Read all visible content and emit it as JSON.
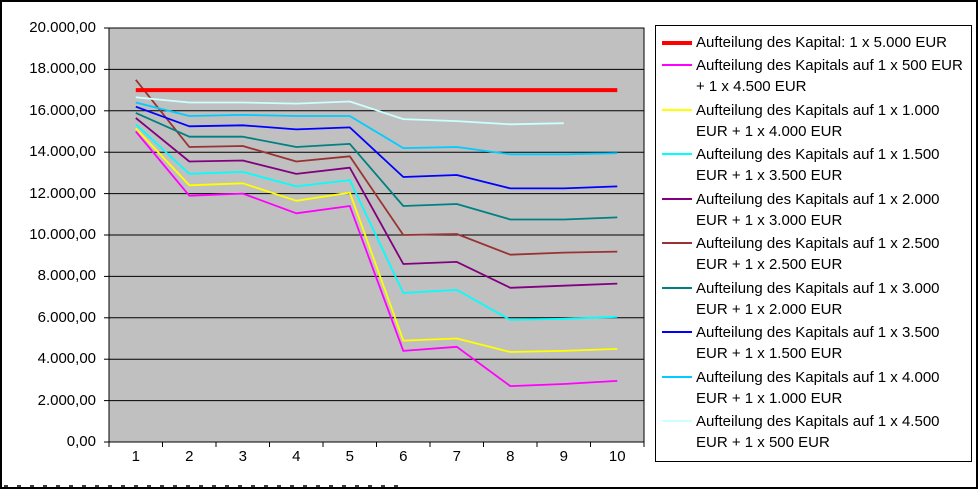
{
  "chart_data": {
    "type": "line",
    "title": "",
    "xlabel": "",
    "ylabel": "",
    "grid": true,
    "plot_bg_color": "#C0C0C0",
    "gridline_color": "#000000",
    "legend_position": "right",
    "x": [
      1,
      2,
      3,
      4,
      5,
      6,
      7,
      8,
      9,
      10
    ],
    "x_tick_labels": [
      "1",
      "2",
      "3",
      "4",
      "5",
      "6",
      "7",
      "8",
      "9",
      "10"
    ],
    "y_axis": {
      "min": 0,
      "max": 20000,
      "step": 2000,
      "tick_labels": [
        "20.000,00",
        "18.000,00",
        "16.000,00",
        "14.000,00",
        "12.000,00",
        "10.000,00",
        "8.000,00",
        "6.000,00",
        "4.000,00",
        "2.000,00",
        "0,00"
      ]
    },
    "series": [
      {
        "name": "Aufteilung des Kapital: 1 x 5.000 EUR",
        "color": "#FF0000",
        "line_width": 4,
        "values": [
          17000,
          17000,
          17000,
          17000,
          17000,
          17000,
          17000,
          17000,
          17000,
          17000
        ]
      },
      {
        "name": "Aufteilung des Kapitals auf 1 x 500 EUR + 1 x 4.500 EUR",
        "color": "#FF00FF",
        "line_width": 1.8,
        "values": [
          15000,
          11900,
          12000,
          11050,
          11400,
          4400,
          4600,
          2700,
          2800,
          2950
        ]
      },
      {
        "name": "Aufteilung des Kapitals auf 1 x 1.000 EUR + 1 x 4.000 EUR",
        "color": "#FFFF00",
        "line_width": 1.8,
        "values": [
          15150,
          12400,
          12500,
          11650,
          12050,
          4900,
          5000,
          4350,
          4400,
          4500
        ]
      },
      {
        "name": "Aufteilung des Kapitals auf 1 x 1.500 EUR + 1 x 3.500 EUR",
        "color": "#00FFFF",
        "line_width": 1.8,
        "values": [
          15350,
          12950,
          13050,
          12350,
          12650,
          7200,
          7350,
          5900,
          5950,
          6050
        ]
      },
      {
        "name": "Aufteilung des Kapitals auf 1 x 2.000 EUR + 1 x 3.000 EUR",
        "color": "#800080",
        "line_width": 1.8,
        "values": [
          15650,
          13550,
          13600,
          12950,
          13250,
          8600,
          8700,
          7450,
          7550,
          7650
        ]
      },
      {
        "name": "Aufteilung des Kapitals auf 1 x 2.500 EUR + 1 x 2.500 EUR",
        "color": "#993333",
        "line_width": 1.8,
        "values": [
          17500,
          14250,
          14300,
          13550,
          13800,
          10000,
          10050,
          9050,
          9150,
          9200
        ]
      },
      {
        "name": "Aufteilung des Kapitals auf 1 x 3.000 EUR + 1 x 2.000 EUR",
        "color": "#008080",
        "line_width": 1.8,
        "values": [
          15900,
          14750,
          14750,
          14250,
          14400,
          11400,
          11500,
          10750,
          10750,
          10850
        ]
      },
      {
        "name": "Aufteilung des Kapitals auf 1 x 3.500 EUR + 1 x 1.500 EUR",
        "color": "#0000FF",
        "line_width": 1.8,
        "values": [
          16200,
          15250,
          15300,
          15100,
          15200,
          12800,
          12900,
          12250,
          12250,
          12350
        ]
      },
      {
        "name": "Aufteilung des Kapitals auf 1 x 4.000 EUR + 1 x 1.000 EUR",
        "color": "#00CCFF",
        "line_width": 1.8,
        "values": [
          16400,
          15750,
          15800,
          15750,
          15750,
          14200,
          14250,
          13900,
          13900,
          13950
        ]
      },
      {
        "name": "Aufteilung des Kapitals auf 1 x 4.500 EUR + 1 x 500 EUR",
        "color": "#CCFFFF",
        "line_width": 1.8,
        "values": [
          16650,
          16400,
          16400,
          16350,
          16450,
          15600,
          15500,
          15350,
          15400,
          null
        ]
      }
    ]
  }
}
